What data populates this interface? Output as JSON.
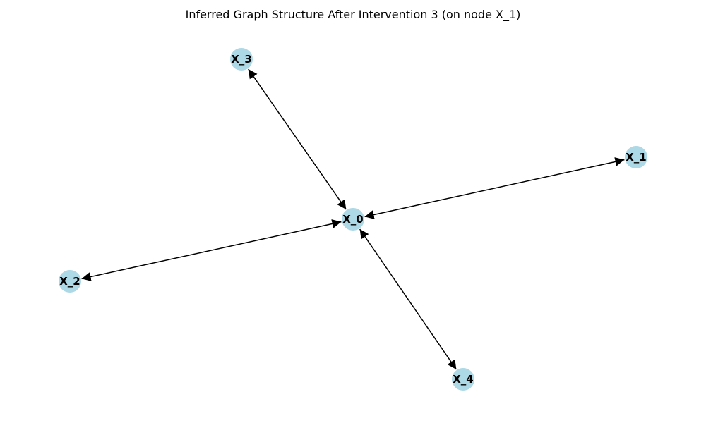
{
  "title": "Inferred Graph Structure After Intervention 3 (on node X_1)",
  "colors": {
    "node_fill": "#add8e6",
    "edge": "#000000",
    "label": "#000000",
    "background": "#ffffff"
  },
  "nodes": [
    {
      "id": "X_0",
      "label": "X_0"
    },
    {
      "id": "X_1",
      "label": "X_1"
    },
    {
      "id": "X_2",
      "label": "X_2"
    },
    {
      "id": "X_3",
      "label": "X_3"
    },
    {
      "id": "X_4",
      "label": "X_4"
    }
  ],
  "edges": [
    {
      "from": "X_0",
      "to": "X_1",
      "arrow_start": true,
      "arrow_end": true
    },
    {
      "from": "X_0",
      "to": "X_2",
      "arrow_start": true,
      "arrow_end": true
    },
    {
      "from": "X_0",
      "to": "X_3",
      "arrow_start": true,
      "arrow_end": true
    },
    {
      "from": "X_0",
      "to": "X_4",
      "arrow_start": true,
      "arrow_end": true
    }
  ]
}
